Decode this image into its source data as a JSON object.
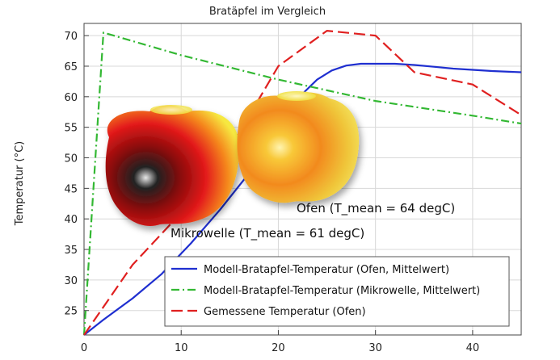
{
  "chart_data": {
    "type": "line",
    "title": "Bratäpfel im Vergleich",
    "ylabel": "Temperatur (°C)",
    "xlabel": "",
    "xlim": [
      0,
      45
    ],
    "ylim": [
      21,
      72
    ],
    "xticks": [
      0,
      10,
      20,
      30,
      40
    ],
    "yticks": [
      25,
      30,
      35,
      40,
      45,
      50,
      55,
      60,
      65,
      70
    ],
    "grid": true,
    "legend_position": "bottom-right",
    "annotations": [
      {
        "text": "Ofen (T_mean = 64 degC)"
      },
      {
        "text": "Mikrowelle (T_mean = 61 degC)"
      }
    ],
    "series": [
      {
        "name": "Modell-Bratapfel-Temperatur (Ofen, Mittelwert)",
        "color": "#1f2fd0",
        "dash": "solid",
        "points": [
          [
            0,
            21.0
          ],
          [
            2,
            23.5
          ],
          [
            5,
            27.0
          ],
          [
            8,
            31.0
          ],
          [
            11,
            36.0
          ],
          [
            14,
            41.5
          ],
          [
            17,
            47.5
          ],
          [
            19,
            52.5
          ],
          [
            21,
            57.5
          ],
          [
            22.5,
            60.5
          ],
          [
            24,
            62.8
          ],
          [
            25.5,
            64.3
          ],
          [
            27,
            65.1
          ],
          [
            28.5,
            65.4
          ],
          [
            30,
            65.4
          ],
          [
            32,
            65.4
          ],
          [
            34,
            65.2
          ],
          [
            36,
            64.9
          ],
          [
            38,
            64.6
          ],
          [
            40,
            64.4
          ],
          [
            42,
            64.2
          ],
          [
            45,
            64.0
          ]
        ]
      },
      {
        "name": "Modell-Bratapfel-Temperatur (Mikrowelle, Mittelwert)",
        "color": "#33b833",
        "dash": "dashdot",
        "points": [
          [
            0,
            21.0
          ],
          [
            2,
            70.5
          ],
          [
            10,
            66.8
          ],
          [
            20,
            62.8
          ],
          [
            30,
            59.3
          ],
          [
            40,
            56.9
          ],
          [
            45,
            55.6
          ]
        ]
      },
      {
        "name": "Gemessene Temperatur (Ofen)",
        "color": "#e02020",
        "dash": "dashed",
        "points": [
          [
            0,
            21.0
          ],
          [
            5,
            32.5
          ],
          [
            10,
            41.0
          ],
          [
            15,
            51.5
          ],
          [
            20,
            65.0
          ],
          [
            25,
            70.8
          ],
          [
            30,
            70.0
          ],
          [
            34,
            64.0
          ],
          [
            40,
            62.0
          ],
          [
            45,
            57.0
          ]
        ]
      }
    ]
  }
}
